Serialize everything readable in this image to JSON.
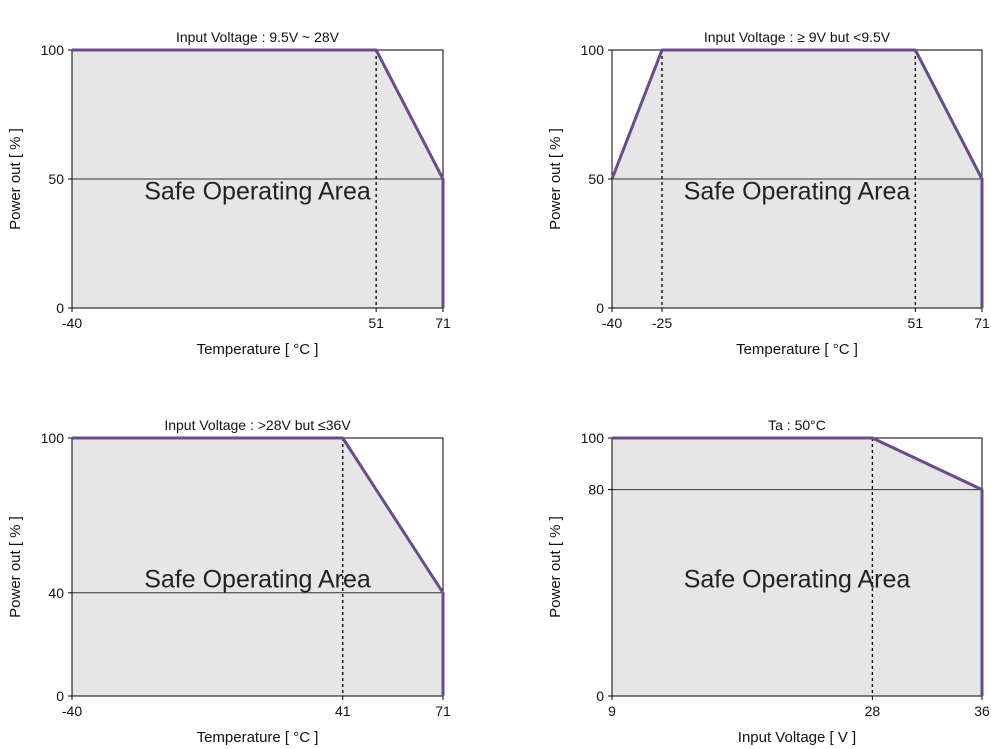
{
  "chart_data": [
    {
      "type": "area",
      "title": "Input Voltage : 9.5V ~ 28V",
      "xlabel": "Temperature [ °C ]",
      "ylabel": "Power out [ % ]",
      "xlim": [
        -40,
        71
      ],
      "ylim": [
        0,
        100
      ],
      "xticks": [
        -40,
        51,
        71
      ],
      "yticks": [
        0,
        50,
        100
      ],
      "hlines": [
        50
      ],
      "vlines": [
        51
      ],
      "annotation": "Safe Operating Area",
      "series": [
        {
          "x": [
            -40,
            51,
            71,
            71
          ],
          "y": [
            100,
            100,
            50,
            0
          ]
        }
      ]
    },
    {
      "type": "area",
      "title": "Input Voltage : ≥ 9V but <9.5V",
      "xlabel": "Temperature [ °C ]",
      "ylabel": "Power out [ % ]",
      "xlim": [
        -40,
        71
      ],
      "ylim": [
        0,
        100
      ],
      "xticks": [
        -40,
        -25,
        51,
        71
      ],
      "yticks": [
        0,
        50,
        100
      ],
      "hlines": [
        50
      ],
      "vlines": [
        -25,
        51
      ],
      "annotation": "Safe Operating Area",
      "series": [
        {
          "x": [
            -40,
            -25,
            51,
            71,
            71
          ],
          "y": [
            50,
            100,
            100,
            50,
            0
          ]
        }
      ]
    },
    {
      "type": "area",
      "title": "Input Voltage : >28V but ≤36V",
      "xlabel": "Temperature [ °C ]",
      "ylabel": "Power out [ % ]",
      "xlim": [
        -40,
        71
      ],
      "ylim": [
        0,
        100
      ],
      "xticks": [
        -40,
        41,
        71
      ],
      "yticks": [
        0,
        40,
        100
      ],
      "hlines": [
        40
      ],
      "vlines": [
        41
      ],
      "annotation": "Safe Operating Area",
      "series": [
        {
          "x": [
            -40,
            41,
            71,
            71
          ],
          "y": [
            100,
            100,
            40,
            0
          ]
        }
      ]
    },
    {
      "type": "area",
      "title": "Ta : 50°C",
      "xlabel": "Input Voltage [ V ]",
      "ylabel": "Power out [ % ]",
      "xlim": [
        9,
        36
      ],
      "ylim": [
        0,
        100
      ],
      "xticks": [
        9,
        28,
        36
      ],
      "yticks": [
        0,
        80,
        100
      ],
      "hlines": [
        80
      ],
      "vlines": [
        28
      ],
      "annotation": "Safe Operating Area",
      "series": [
        {
          "x": [
            9,
            28,
            36,
            36
          ],
          "y": [
            100,
            100,
            80,
            0
          ]
        }
      ]
    }
  ],
  "colors": {
    "line": "#6b4c8a",
    "fill": "#e6e6e6",
    "frame": "#000000",
    "guide": "#333333"
  }
}
